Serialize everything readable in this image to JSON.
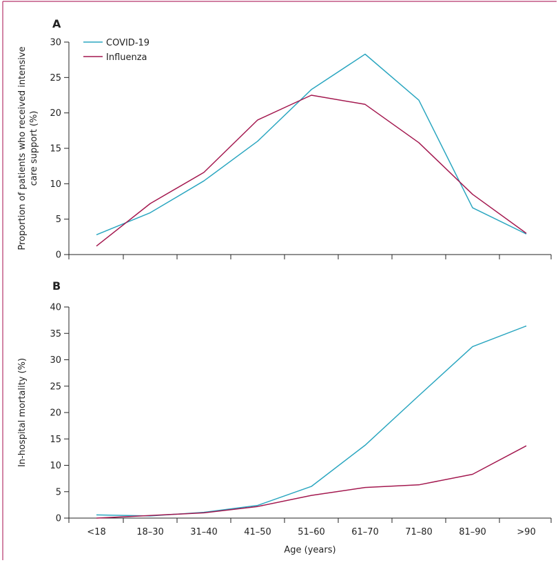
{
  "colors": {
    "frame": "#b5336b",
    "covid": "#2aa6c0",
    "influenza": "#a3174e",
    "axis": "#222222"
  },
  "xlabel": "Age (years)",
  "categories": [
    "<18",
    "18–30",
    "31–40",
    "41–50",
    "51–60",
    "61–70",
    "71–80",
    "81–90",
    ">90"
  ],
  "chart_data": [
    {
      "type": "line",
      "panel": "A",
      "ylabel_lines": [
        "Proportion of patients who received intensive",
        "care support (%)"
      ],
      "ylim": [
        0,
        30
      ],
      "yticks": [
        0,
        5,
        10,
        15,
        20,
        25,
        30
      ],
      "categories": [
        "<18",
        "18–30",
        "31–40",
        "41–50",
        "51–60",
        "61–70",
        "71–80",
        "81–90",
        ">90"
      ],
      "legend": "top-left",
      "series": [
        {
          "name": "COVID-19",
          "color": "#2aa6c0",
          "values": [
            2.8,
            5.9,
            10.4,
            16.0,
            23.3,
            28.3,
            21.8,
            6.6,
            2.9
          ]
        },
        {
          "name": "Influenza",
          "color": "#a3174e",
          "values": [
            1.2,
            7.2,
            11.6,
            19.0,
            22.5,
            21.2,
            15.8,
            8.5,
            3.0
          ]
        }
      ]
    },
    {
      "type": "line",
      "panel": "B",
      "ylabel": "In-hospital mortality (%)",
      "xlabel": "Age (years)",
      "ylim": [
        0,
        40
      ],
      "yticks": [
        0,
        5,
        10,
        15,
        20,
        25,
        30,
        35,
        40
      ],
      "categories": [
        "<18",
        "18–30",
        "31–40",
        "41–50",
        "51–60",
        "61–70",
        "71–80",
        "81–90",
        ">90"
      ],
      "series": [
        {
          "name": "COVID-19",
          "color": "#2aa6c0",
          "values": [
            0.6,
            0.4,
            1.1,
            2.4,
            6.0,
            13.8,
            23.2,
            32.5,
            36.4
          ]
        },
        {
          "name": "Influenza",
          "color": "#a3174e",
          "values": [
            0.0,
            0.5,
            1.0,
            2.2,
            4.3,
            5.8,
            6.3,
            8.3,
            13.7
          ]
        }
      ]
    }
  ]
}
